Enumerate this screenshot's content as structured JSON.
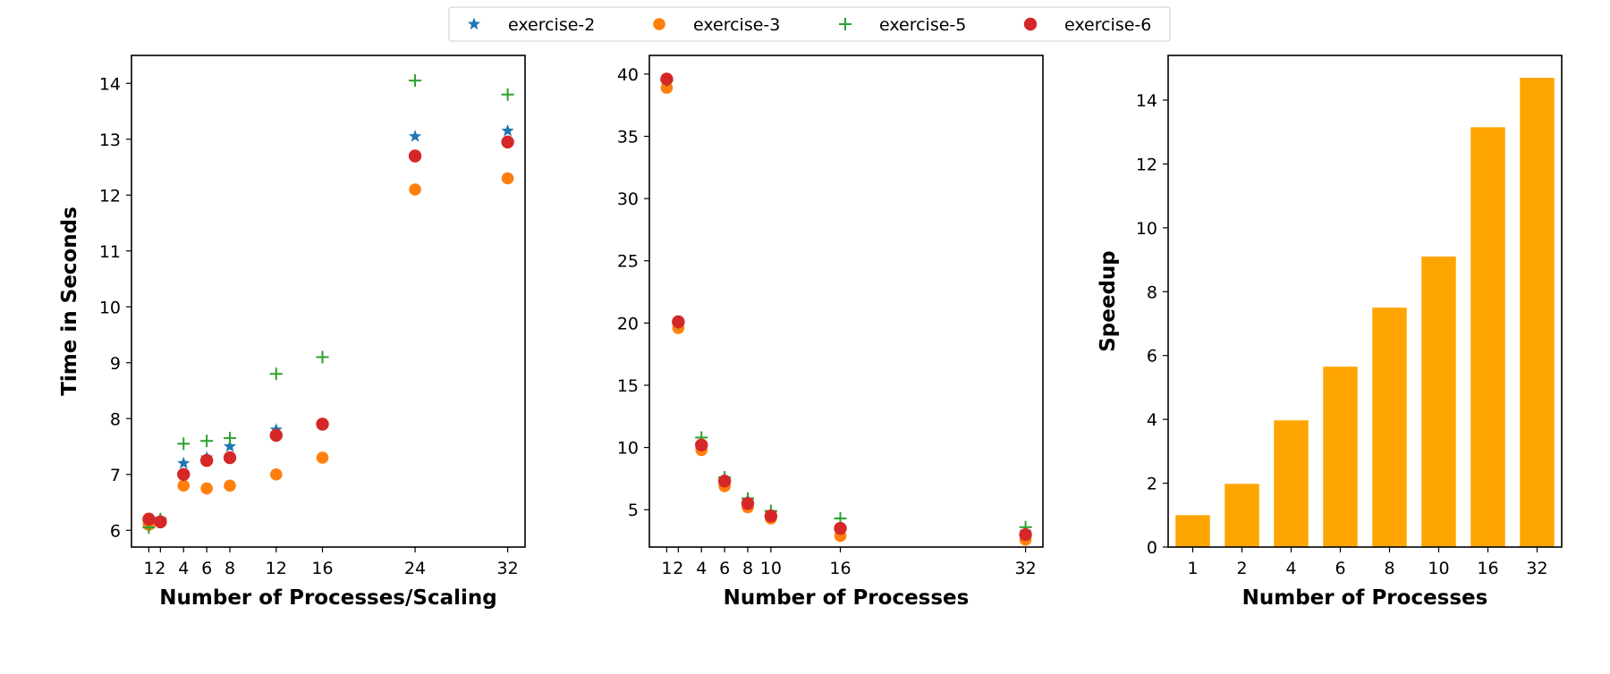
{
  "legend": {
    "entries": [
      {
        "label": "exercise-2",
        "marker": "star",
        "color": "#1f77b4"
      },
      {
        "label": "exercise-3",
        "marker": "circle",
        "color": "#ff7f0e"
      },
      {
        "label": "exercise-5",
        "marker": "plus",
        "color": "#2ca02c"
      },
      {
        "label": "exercise-6",
        "marker": "circle-large",
        "color": "#d62728"
      }
    ]
  },
  "chart_data": [
    {
      "type": "scatter",
      "panel": "left",
      "xlabel": "Number of Processes/Scaling",
      "ylabel": "Time in Seconds",
      "x_ticks": [
        1,
        2,
        4,
        6,
        8,
        12,
        16,
        24,
        32
      ],
      "x_tick_labels": [
        "1",
        "2",
        "4",
        "6",
        "8",
        "12",
        "16",
        "24",
        "32"
      ],
      "xlim": [
        -0.5,
        33.5
      ],
      "ylim": [
        5.7,
        14.5
      ],
      "y_ticks": [
        6,
        7,
        8,
        9,
        10,
        11,
        12,
        13,
        14
      ],
      "grid": false,
      "series": [
        {
          "name": "exercise-2",
          "x": [
            1,
            2,
            4,
            6,
            8,
            12,
            16,
            24,
            32
          ],
          "y": [
            6.1,
            6.2,
            7.2,
            7.3,
            7.5,
            7.8,
            7.9,
            13.05,
            13.15
          ]
        },
        {
          "name": "exercise-3",
          "x": [
            1,
            2,
            4,
            6,
            8,
            12,
            16,
            24,
            32
          ],
          "y": [
            6.1,
            6.15,
            6.8,
            6.75,
            6.8,
            7.0,
            7.3,
            12.1,
            12.3
          ]
        },
        {
          "name": "exercise-5",
          "x": [
            1,
            2,
            4,
            6,
            8,
            12,
            16,
            24,
            32
          ],
          "y": [
            6.05,
            6.2,
            7.55,
            7.6,
            7.65,
            8.8,
            9.1,
            14.05,
            13.8
          ]
        },
        {
          "name": "exercise-6",
          "x": [
            1,
            2,
            4,
            6,
            8,
            12,
            16,
            24,
            32
          ],
          "y": [
            6.2,
            6.15,
            7.0,
            7.25,
            7.3,
            7.7,
            7.9,
            12.7,
            12.95
          ]
        }
      ]
    },
    {
      "type": "scatter",
      "panel": "middle",
      "xlabel": "Number of Processes",
      "ylabel": "",
      "x_ticks": [
        1,
        2,
        4,
        6,
        8,
        10,
        16,
        32
      ],
      "x_tick_labels": [
        "1",
        "2",
        "4",
        "6",
        "8",
        "10",
        "16",
        "32"
      ],
      "xlim": [
        -0.5,
        33.5
      ],
      "ylim": [
        2.0,
        41.5
      ],
      "y_ticks": [
        5,
        10,
        15,
        20,
        25,
        30,
        35,
        40
      ],
      "grid": false,
      "series": [
        {
          "name": "exercise-2",
          "x": [
            1,
            2,
            4,
            6,
            8,
            10,
            16,
            32
          ],
          "y": [
            39.4,
            19.9,
            10.3,
            7.5,
            5.8,
            4.7,
            3.5,
            3.2
          ]
        },
        {
          "name": "exercise-3",
          "x": [
            1,
            2,
            4,
            6,
            8,
            10,
            16,
            32
          ],
          "y": [
            38.9,
            19.6,
            9.8,
            6.9,
            5.2,
            4.3,
            2.9,
            2.6
          ]
        },
        {
          "name": "exercise-5",
          "x": [
            1,
            2,
            4,
            6,
            8,
            10,
            16,
            32
          ],
          "y": [
            39.5,
            20.0,
            10.8,
            7.6,
            5.9,
            4.9,
            4.3,
            3.6
          ]
        },
        {
          "name": "exercise-6",
          "x": [
            1,
            2,
            4,
            6,
            8,
            10,
            16,
            32
          ],
          "y": [
            39.6,
            20.1,
            10.2,
            7.3,
            5.5,
            4.5,
            3.5,
            3.0
          ]
        }
      ]
    },
    {
      "type": "bar",
      "panel": "right",
      "xlabel": "Number of Processes",
      "ylabel": "Speedup",
      "categories": [
        "1",
        "2",
        "4",
        "6",
        "8",
        "10",
        "16",
        "32"
      ],
      "values": [
        1.0,
        1.98,
        3.97,
        5.65,
        7.5,
        9.1,
        13.15,
        14.7
      ],
      "ylim": [
        0,
        15.4
      ],
      "y_ticks": [
        0,
        2,
        4,
        6,
        8,
        10,
        12,
        14
      ],
      "bar_color": "#ffa500",
      "grid": false
    }
  ]
}
